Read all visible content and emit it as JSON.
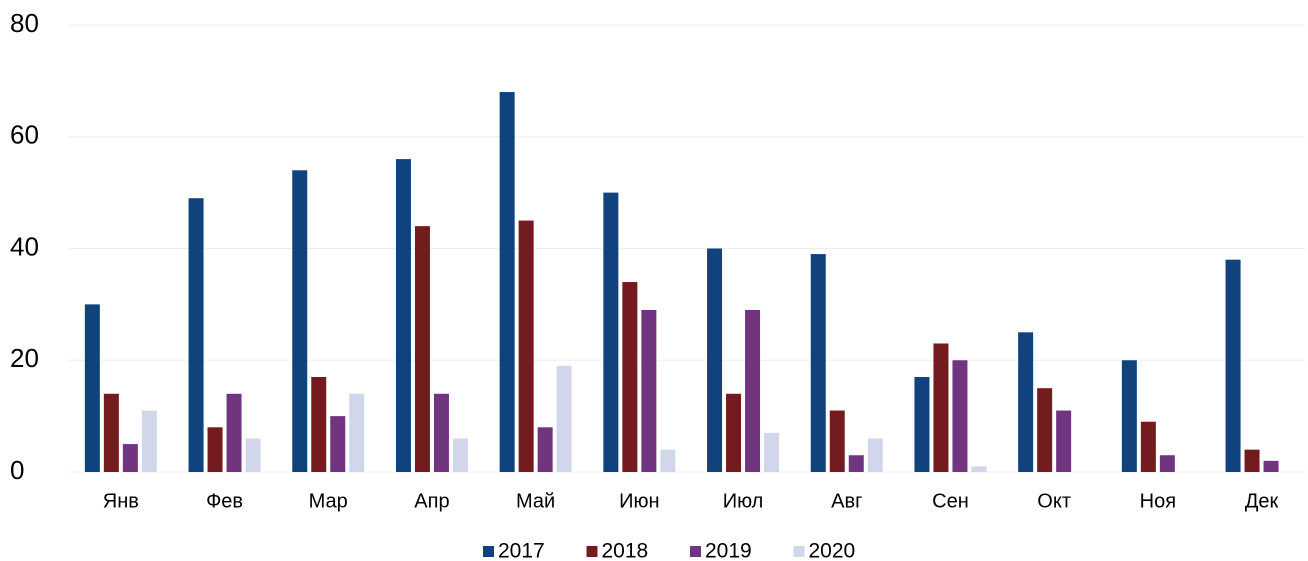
{
  "chart_data": {
    "type": "bar",
    "categories": [
      "Янв",
      "Фев",
      "Мар",
      "Апр",
      "Май",
      "Июн",
      "Июл",
      "Авг",
      "Сен",
      "Окт",
      "Ноя",
      "Дек"
    ],
    "series": [
      {
        "name": "2017",
        "color": "#10427e",
        "values": [
          30,
          49,
          54,
          56,
          68,
          50,
          40,
          39,
          17,
          25,
          20,
          38
        ]
      },
      {
        "name": "2018",
        "color": "#741b20",
        "values": [
          14,
          8,
          17,
          44,
          45,
          34,
          14,
          11,
          23,
          15,
          9,
          4
        ]
      },
      {
        "name": "2019",
        "color": "#713580",
        "values": [
          5,
          14,
          10,
          14,
          8,
          29,
          29,
          3,
          20,
          11,
          3,
          2
        ]
      },
      {
        "name": "2020",
        "color": "#d1d6ea",
        "values": [
          11,
          6,
          14,
          6,
          19,
          4,
          7,
          6,
          1,
          null,
          null,
          null
        ]
      }
    ],
    "ylim": [
      0,
      80
    ],
    "yticks": [
      0,
      20,
      40,
      60,
      80
    ],
    "grid": true,
    "legend": "bottom"
  }
}
